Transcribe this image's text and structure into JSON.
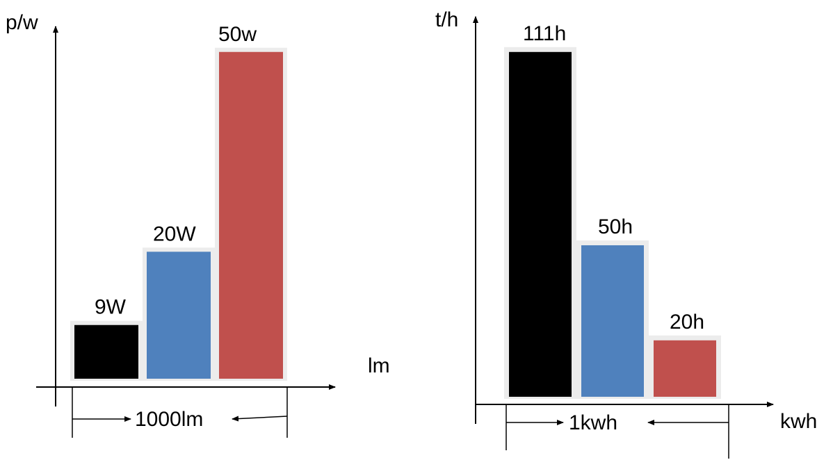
{
  "colors": {
    "black": "#000000",
    "blue": "#4f81bd",
    "red": "#c0504d",
    "frame": "#ececec",
    "axis": "#000000"
  },
  "chart_data": [
    {
      "type": "bar",
      "title": "",
      "ylabel": "p/w",
      "xlabel": "lm",
      "span_label": "1000lm",
      "ylim": [
        0,
        53
      ],
      "grid": false,
      "legend": "none",
      "bars": [
        {
          "value": 9,
          "label": "9W",
          "color": "#000000"
        },
        {
          "value": 20,
          "label": "20W",
          "color": "#4f81bd"
        },
        {
          "value": 50,
          "label": "50w",
          "color": "#c0504d"
        }
      ]
    },
    {
      "type": "bar",
      "title": "",
      "ylabel": "t/h",
      "xlabel": "kwh",
      "span_label": "1kwh",
      "ylim": [
        0,
        116
      ],
      "grid": false,
      "legend": "none",
      "bars": [
        {
          "value": 111,
          "label": "111h",
          "color": "#000000"
        },
        {
          "value": 50,
          "label": "50h",
          "color": "#4f81bd"
        },
        {
          "value": 20,
          "label": "20h",
          "color": "#c0504d"
        }
      ]
    }
  ]
}
